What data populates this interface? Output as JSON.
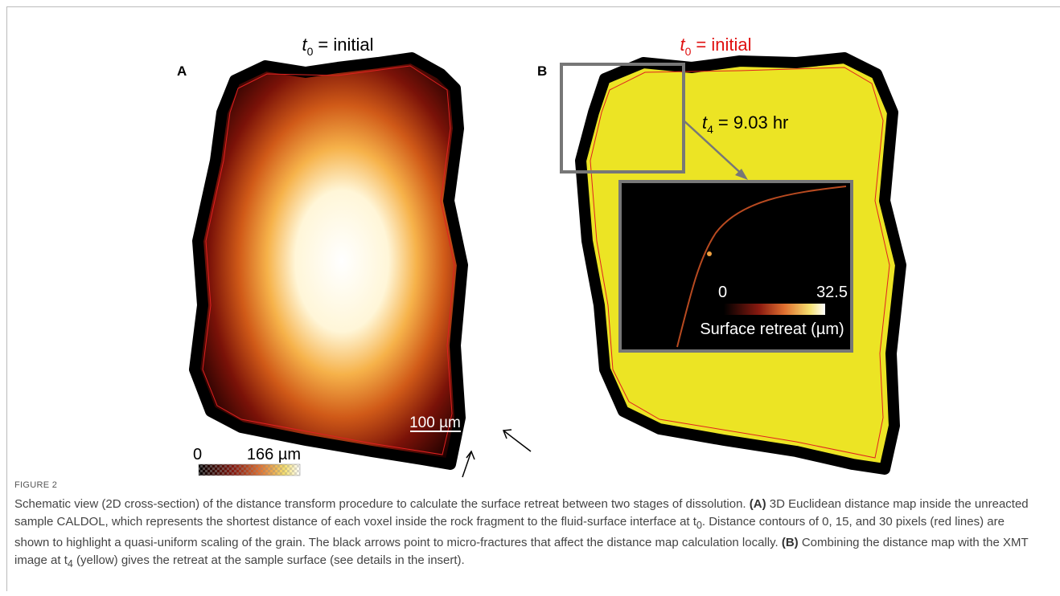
{
  "panels": [
    {
      "label": "A",
      "title": {
        "var": "t",
        "sub": "0",
        "text": "= initial"
      },
      "scale_bar": "100 µm",
      "colorbar": {
        "min": "0",
        "max": "166 µm"
      }
    },
    {
      "label": "B",
      "title": {
        "var": "t",
        "sub": "0",
        "text": "= initial"
      },
      "annotation": {
        "var": "t",
        "sub": "4",
        "text": "= 9.03 hr"
      },
      "inset": {
        "colorbar": {
          "min": "0",
          "max": "32.5"
        },
        "label": "Surface retreat (µm)"
      }
    }
  ],
  "figure": {
    "label": "FIGURE 2",
    "caption": [
      "Schematic view (2D cross-section) of the distance transform procedure to calculate the surface retreat between two stages of dissolution. ",
      "(A)",
      " 3D Euclidean distance map inside the unreacted sample CALDOL, which represents the shortest distance of each voxel inside the rock fragment to the fluid-surface interface at t",
      "0",
      ". Distance contours of 0, 15, and 30 pixels (red lines) are shown to highlight a quasi-uniform scaling of the grain. The black arrows point to micro-fractures that affect the distance map calculation locally. ",
      "(B)",
      " Combining the distance map with the XMT image at t",
      "4",
      " (yellow) gives the retreat at the sample surface (see details in the insert)."
    ]
  }
}
